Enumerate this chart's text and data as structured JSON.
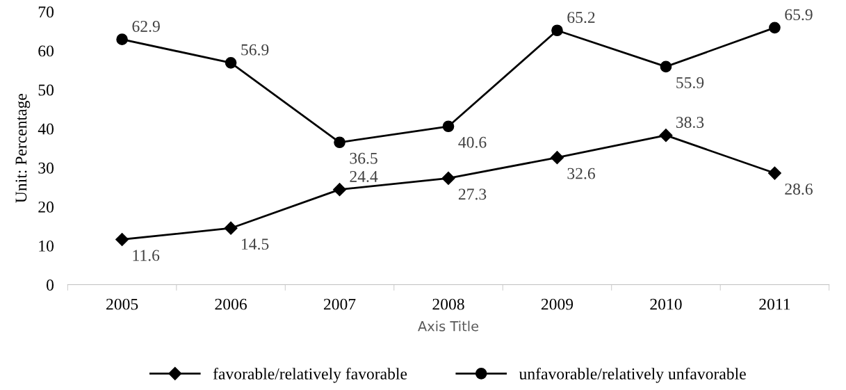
{
  "chart_data": {
    "type": "line",
    "xlabel": "Axis Title",
    "ylabel": "Unit: Percentage",
    "categories": [
      "2005",
      "2006",
      "2007",
      "2008",
      "2009",
      "2010",
      "2011"
    ],
    "series": [
      {
        "name": "favorable/relatively favorable",
        "color": "#000000",
        "marker": "diamond",
        "values": [
          11.6,
          14.5,
          24.4,
          27.3,
          32.6,
          38.3,
          28.6
        ]
      },
      {
        "name": "unfavorable/relatively unfavorable",
        "color": "#000000",
        "marker": "circle",
        "values": [
          62.9,
          56.9,
          36.5,
          40.6,
          65.2,
          55.9,
          65.9
        ]
      }
    ],
    "ylim": [
      0,
      70
    ],
    "yticks": [
      0,
      10,
      20,
      30,
      40,
      50,
      60,
      70
    ],
    "grid": false,
    "legend": "bottom",
    "data_labels": true,
    "line_style": "solid"
  }
}
